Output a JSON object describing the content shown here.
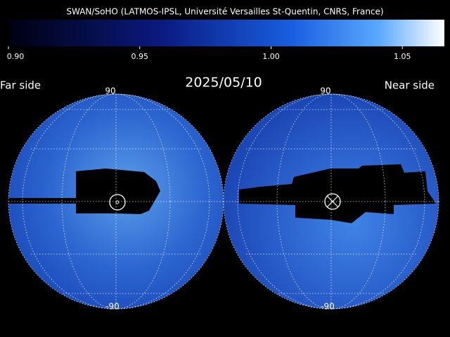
{
  "header": {
    "title": "SWAN/SoHO (LATMOS-IPSL, Université Versailles St-Quentin, CNRS, France)"
  },
  "colorbar": {
    "lim": [
      0.9,
      1.066
    ],
    "ticks": [
      {
        "value": 0.9,
        "label": "0.90"
      },
      {
        "value": 0.95,
        "label": "0.95"
      },
      {
        "value": 1.0,
        "label": "1.00"
      },
      {
        "value": 1.05,
        "label": "1.05"
      }
    ]
  },
  "date": "2025/05/10",
  "maps": [
    {
      "label": "Far side",
      "top": "90",
      "bottom": "-90"
    },
    {
      "label": "Near side",
      "top": "90",
      "bottom": "-90"
    }
  ]
}
